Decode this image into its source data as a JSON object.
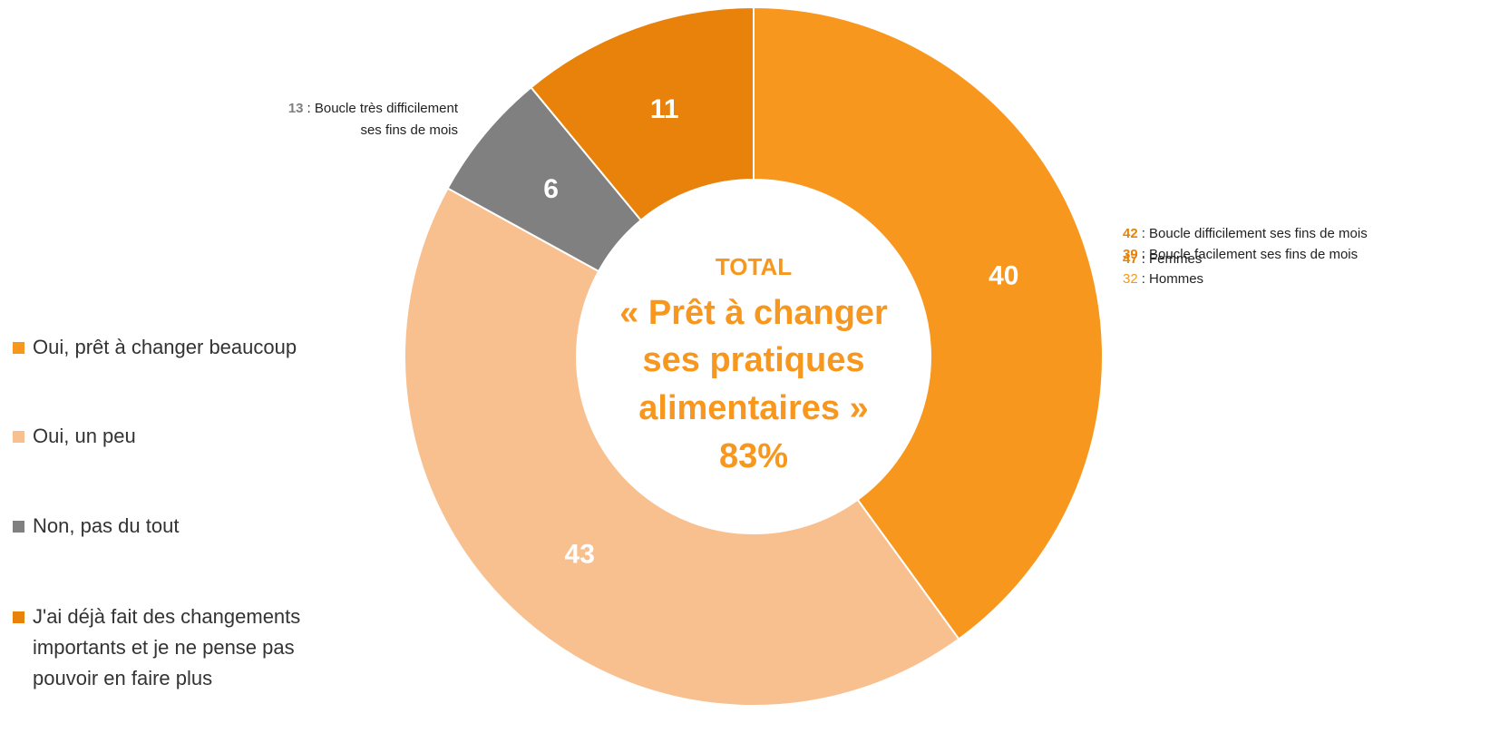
{
  "chart_data": {
    "type": "donut",
    "categories": [
      "Oui, prêt à changer beaucoup",
      "Oui, un peu",
      "Non, pas du tout",
      "J'ai déjà fait des changements importants et je ne pense pas pouvoir en faire plus"
    ],
    "values": [
      40,
      43,
      6,
      11
    ],
    "colors": [
      "#f7971e",
      "#f9c08f",
      "#808080",
      "#e8820a"
    ],
    "center_text": [
      "TOTAL",
      "« Prêt à changer",
      "ses pratiques",
      "alimentaires »",
      "83%"
    ],
    "annotations_left": [
      {
        "number": "13",
        "lines": [
          ": Boucle très difficilement",
          "ses fins de mois"
        ],
        "color": "#808080"
      }
    ],
    "annotations_right": [
      {
        "number": "42",
        "lines": [
          ": Boucle difficilement ses fins de mois"
        ],
        "color": "#e8820a"
      },
      {
        "number": "39",
        "lines": [
          ": Boucle facilement ses fins de mois"
        ],
        "color": "#e8820a"
      },
      {
        "number": "47",
        "lines": [
          ": Femmes"
        ],
        "color": "#e8820a"
      },
      {
        "number": "32",
        "lines": [
          ": Hommes"
        ],
        "color": "#f7971e"
      }
    ]
  }
}
